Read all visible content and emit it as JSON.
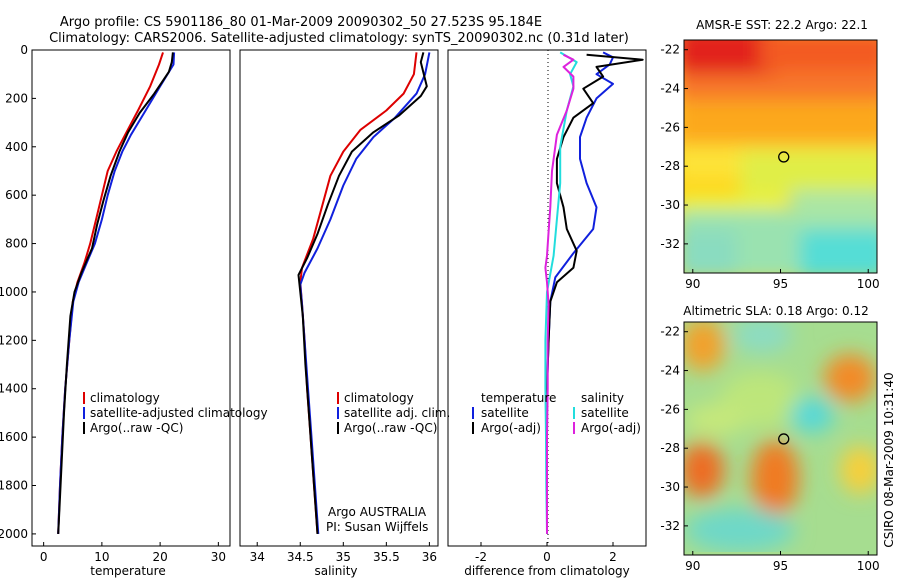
{
  "title_line1": "Argo profile: CS 5901186_80 01-Mar-2009 20090302_50 27.523S 95.184E",
  "title_line2": "Climatology: CARS2006. Satellite-adjusted climatology: synTS_20090302.nc (0.31d later)",
  "side_credit": "CSIRO 08-Mar-2009 10:31:40",
  "colors": {
    "red": "#dd0000",
    "blue": "#1020dd",
    "black": "#000000",
    "cyan": "#22dddd",
    "magenta": "#dd22dd"
  },
  "chart_data": [
    {
      "type": "line",
      "name": "temperature-panel",
      "xlabel": "temperature",
      "xlim": [
        -2,
        32
      ],
      "ylim": [
        2050,
        0
      ],
      "xticks": [
        0,
        10,
        20,
        30
      ],
      "yticks": [
        0,
        200,
        400,
        600,
        800,
        1000,
        1200,
        1400,
        1600,
        1800,
        2000
      ],
      "legend": [
        "climatology",
        "satellite-adjusted climatology",
        "Argo(..raw -QC)"
      ],
      "series": [
        {
          "name": "climatology",
          "color": "red",
          "points": [
            [
              20.5,
              10
            ],
            [
              19.8,
              60
            ],
            [
              18.3,
              150
            ],
            [
              16.2,
              250
            ],
            [
              14,
              350
            ],
            [
              12.5,
              420
            ],
            [
              11,
              500
            ],
            [
              10,
              600
            ],
            [
              9,
              700
            ],
            [
              8,
              800
            ],
            [
              7,
              880
            ],
            [
              5.8,
              960
            ],
            [
              5,
              1040
            ],
            [
              4.4,
              1200
            ],
            [
              3.7,
              1400
            ],
            [
              3.2,
              1600
            ],
            [
              2.8,
              1800
            ],
            [
              2.5,
              2000
            ]
          ]
        },
        {
          "name": "satellite-adjusted climatology",
          "color": "blue",
          "points": [
            [
              22.4,
              10
            ],
            [
              22.3,
              60
            ],
            [
              20,
              150
            ],
            [
              17.5,
              250
            ],
            [
              15,
              350
            ],
            [
              13.5,
              420
            ],
            [
              12.2,
              500
            ],
            [
              11,
              600
            ],
            [
              10,
              700
            ],
            [
              8.8,
              800
            ],
            [
              7.4,
              880
            ],
            [
              6,
              960
            ],
            [
              5.1,
              1040
            ],
            [
              4.4,
              1200
            ],
            [
              3.7,
              1400
            ],
            [
              3.2,
              1600
            ],
            [
              2.8,
              1800
            ],
            [
              2.5,
              2000
            ]
          ]
        },
        {
          "name": "Argo(..raw -QC)",
          "color": "black",
          "points": [
            [
              22.2,
              10
            ],
            [
              22,
              50
            ],
            [
              21.5,
              90
            ],
            [
              19,
              180
            ],
            [
              16.5,
              260
            ],
            [
              14.5,
              340
            ],
            [
              13,
              420
            ],
            [
              11.5,
              520
            ],
            [
              10.3,
              620
            ],
            [
              9.2,
              720
            ],
            [
              8.3,
              820
            ],
            [
              6.5,
              920
            ],
            [
              5.3,
              1000
            ],
            [
              4.6,
              1100
            ],
            [
              4,
              1300
            ],
            [
              3.5,
              1500
            ],
            [
              3.1,
              1700
            ],
            [
              2.7,
              1900
            ],
            [
              2.5,
              2000
            ]
          ]
        }
      ]
    },
    {
      "type": "line",
      "name": "salinity-panel",
      "xlabel": "salinity",
      "xlim": [
        33.8,
        36.1
      ],
      "ylim": [
        2050,
        0
      ],
      "xticks": [
        34,
        34.5,
        35,
        35.5,
        36
      ],
      "legend": [
        "climatology",
        "satellite adj. clim.",
        "Argo(..raw -QC)"
      ],
      "annotations": [
        "Argo AUSTRALIA",
        "PI: Susan Wijffels"
      ],
      "series": [
        {
          "name": "climatology",
          "color": "red",
          "points": [
            [
              35.85,
              10
            ],
            [
              35.82,
              100
            ],
            [
              35.7,
              180
            ],
            [
              35.5,
              250
            ],
            [
              35.2,
              330
            ],
            [
              35,
              420
            ],
            [
              34.85,
              520
            ],
            [
              34.75,
              650
            ],
            [
              34.65,
              780
            ],
            [
              34.52,
              900
            ],
            [
              34.5,
              960
            ],
            [
              34.52,
              1050
            ],
            [
              34.55,
              1200
            ],
            [
              34.58,
              1400
            ],
            [
              34.62,
              1600
            ],
            [
              34.66,
              1800
            ],
            [
              34.7,
              2000
            ]
          ]
        },
        {
          "name": "satellite adj. clim.",
          "color": "blue",
          "points": [
            [
              36,
              10
            ],
            [
              35.95,
              100
            ],
            [
              35.85,
              180
            ],
            [
              35.6,
              280
            ],
            [
              35.35,
              360
            ],
            [
              35.15,
              450
            ],
            [
              35,
              560
            ],
            [
              34.85,
              700
            ],
            [
              34.7,
              820
            ],
            [
              34.55,
              920
            ],
            [
              34.5,
              970
            ],
            [
              34.52,
              1050
            ],
            [
              34.55,
              1200
            ],
            [
              34.59,
              1400
            ],
            [
              34.63,
              1600
            ],
            [
              34.67,
              1800
            ],
            [
              34.71,
              2000
            ]
          ]
        },
        {
          "name": "Argo(..raw -QC)",
          "color": "black",
          "points": [
            [
              35.93,
              10
            ],
            [
              35.9,
              50
            ],
            [
              35.97,
              150
            ],
            [
              35.9,
              190
            ],
            [
              35.65,
              270
            ],
            [
              35.35,
              340
            ],
            [
              35.1,
              420
            ],
            [
              34.95,
              520
            ],
            [
              34.82,
              640
            ],
            [
              34.7,
              760
            ],
            [
              34.58,
              860
            ],
            [
              34.48,
              930
            ],
            [
              34.5,
              1000
            ],
            [
              34.53,
              1100
            ],
            [
              34.56,
              1300
            ],
            [
              34.6,
              1500
            ],
            [
              34.64,
              1700
            ],
            [
              34.68,
              1900
            ],
            [
              34.7,
              2000
            ]
          ]
        }
      ]
    },
    {
      "type": "line",
      "name": "difference-panel",
      "xlabel": "difference from climatology",
      "xlim": [
        -3,
        3
      ],
      "ylim": [
        2050,
        0
      ],
      "xticks": [
        -2,
        0,
        2
      ],
      "legend_titles": [
        "temperature",
        "salinity"
      ],
      "legend": [
        "satellite",
        "Argo(-adj)",
        "satellite",
        "Argo(-adj)"
      ],
      "series": [
        {
          "name": "temperature satellite",
          "color": "blue",
          "points": [
            [
              1.7,
              10
            ],
            [
              2,
              30
            ],
            [
              1.9,
              60
            ],
            [
              1.5,
              100
            ],
            [
              2,
              140
            ],
            [
              1.5,
              200
            ],
            [
              1.2,
              280
            ],
            [
              1,
              360
            ],
            [
              1,
              450
            ],
            [
              1.2,
              550
            ],
            [
              1.5,
              650
            ],
            [
              1.4,
              740
            ],
            [
              0.8,
              840
            ],
            [
              0.25,
              940
            ],
            [
              0.1,
              1040
            ],
            [
              0.05,
              1200
            ],
            [
              0,
              1400
            ],
            [
              0,
              1600
            ],
            [
              0,
              1800
            ],
            [
              0,
              2000
            ]
          ]
        },
        {
          "name": "temperature Argo(-adj)",
          "color": "black",
          "points": [
            [
              1.2,
              20
            ],
            [
              2.9,
              40
            ],
            [
              1.5,
              70
            ],
            [
              1.7,
              110
            ],
            [
              1.1,
              160
            ],
            [
              1.4,
              220
            ],
            [
              0.8,
              280
            ],
            [
              0.5,
              360
            ],
            [
              0.3,
              450
            ],
            [
              0.3,
              550
            ],
            [
              0.5,
              650
            ],
            [
              0.6,
              740
            ],
            [
              0.9,
              830
            ],
            [
              0.8,
              900
            ],
            [
              0.3,
              960
            ],
            [
              0.1,
              1040
            ],
            [
              0.05,
              1200
            ],
            [
              0,
              1400
            ],
            [
              0,
              1600
            ],
            [
              0,
              1800
            ],
            [
              0,
              2000
            ]
          ]
        },
        {
          "name": "salinity satellite",
          "color": "cyan",
          "points": [
            [
              0.4,
              10
            ],
            [
              0.9,
              50
            ],
            [
              0.7,
              100
            ],
            [
              0.8,
              150
            ],
            [
              0.6,
              250
            ],
            [
              0.4,
              400
            ],
            [
              0.4,
              550
            ],
            [
              0.3,
              700
            ],
            [
              0.2,
              850
            ],
            [
              0,
              1000
            ],
            [
              -0.05,
              1200
            ],
            [
              -0.05,
              1400
            ],
            [
              -0.03,
              1600
            ],
            [
              -0.02,
              1800
            ],
            [
              0,
              2000
            ]
          ]
        },
        {
          "name": "salinity Argo(-adj)",
          "color": "magenta",
          "points": [
            [
              0.5,
              20
            ],
            [
              0.8,
              40
            ],
            [
              0.5,
              70
            ],
            [
              0.8,
              110
            ],
            [
              0.8,
              160
            ],
            [
              0.6,
              250
            ],
            [
              0.3,
              350
            ],
            [
              0.15,
              500
            ],
            [
              0.1,
              650
            ],
            [
              0.05,
              750
            ],
            [
              0,
              850
            ],
            [
              -0.05,
              900
            ],
            [
              0,
              960
            ],
            [
              0.05,
              1050
            ],
            [
              0.02,
              1200
            ],
            [
              0.02,
              1400
            ],
            [
              0,
              1600
            ],
            [
              0,
              1800
            ],
            [
              0,
              2000
            ]
          ]
        }
      ]
    },
    {
      "type": "heatmap",
      "name": "sst-map",
      "title": "AMSR-E SST: 22.2 Argo: 22.1",
      "xlim": [
        89.5,
        100.5
      ],
      "ylim": [
        -33.5,
        -21.5
      ],
      "xticks": [
        90,
        95,
        100
      ],
      "yticks": [
        -22,
        -24,
        -26,
        -28,
        -30,
        -32
      ],
      "marker": {
        "lon": 95.184,
        "lat": -27.523
      }
    },
    {
      "type": "heatmap",
      "name": "sla-map",
      "title": "Altimetric SLA: 0.18 Argo: 0.12",
      "xlim": [
        89.5,
        100.5
      ],
      "ylim": [
        -33.5,
        -21.5
      ],
      "xticks": [
        90,
        95,
        100
      ],
      "yticks": [
        -22,
        -24,
        -26,
        -28,
        -30,
        -32
      ],
      "marker": {
        "lon": 95.184,
        "lat": -27.523
      }
    }
  ]
}
